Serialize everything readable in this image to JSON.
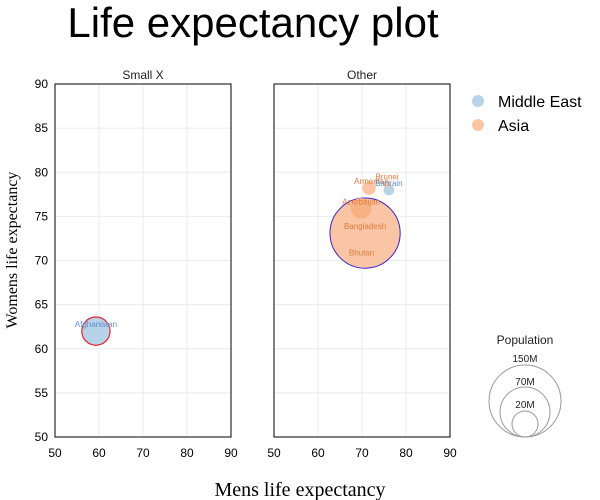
{
  "chart_data": {
    "type": "scatter",
    "title": "Life expectancy plot",
    "xlabel": "Mens life expectancy",
    "ylabel": "Womens life expectancy",
    "xlim": [
      50,
      90
    ],
    "ylim": [
      50,
      90
    ],
    "x_ticks": [
      50,
      60,
      70,
      80,
      90
    ],
    "y_ticks": [
      50,
      55,
      60,
      65,
      70,
      75,
      80,
      85,
      90
    ],
    "grid": true,
    "facets": [
      {
        "title": "Small X",
        "points": [
          {
            "label": "Afghanistan",
            "group": "Middle East",
            "x": 59.3,
            "y": 62.0,
            "size": 21
          }
        ]
      },
      {
        "title": "Other",
        "points": [
          {
            "label": "Bangladesh",
            "group": "Asia",
            "x": 70.7,
            "y": 73.1,
            "size": 160
          },
          {
            "label": "Azerbaijan",
            "group": "Asia",
            "x": 69.8,
            "y": 75.9,
            "size": 10
          },
          {
            "label": "Armenia",
            "group": "Asia",
            "x": 71.6,
            "y": 78.2,
            "size": 3
          },
          {
            "label": "Bhutan",
            "group": "Asia",
            "x": 69.9,
            "y": 70.1,
            "size": 0.8
          },
          {
            "label": "Bahrain",
            "group": "Middle East",
            "x": 76.1,
            "y": 78.0,
            "size": 1.5
          },
          {
            "label": "Brunei",
            "group": "Asia",
            "x": 75.7,
            "y": 78.7,
            "size": 0.4
          }
        ]
      }
    ],
    "legend": {
      "position": "right",
      "items": [
        {
          "name": "Middle East",
          "color": "#b7d3ea"
        },
        {
          "name": "Asia",
          "color": "#f9c5a5"
        }
      ]
    },
    "size_legend": {
      "title": "Population",
      "items": [
        {
          "label": "150M",
          "value": 150
        },
        {
          "label": "70M",
          "value": 70
        },
        {
          "label": "20M",
          "value": 20
        }
      ]
    },
    "colors": {
      "middle_east_fill": "#b7d3ea",
      "middle_east_text": "#5b8fc7",
      "asia_fill": "#f9c5a5",
      "asia_text": "#e07b39",
      "highlight_red": "#e8202a",
      "highlight_blue": "#3a1fd6"
    }
  }
}
